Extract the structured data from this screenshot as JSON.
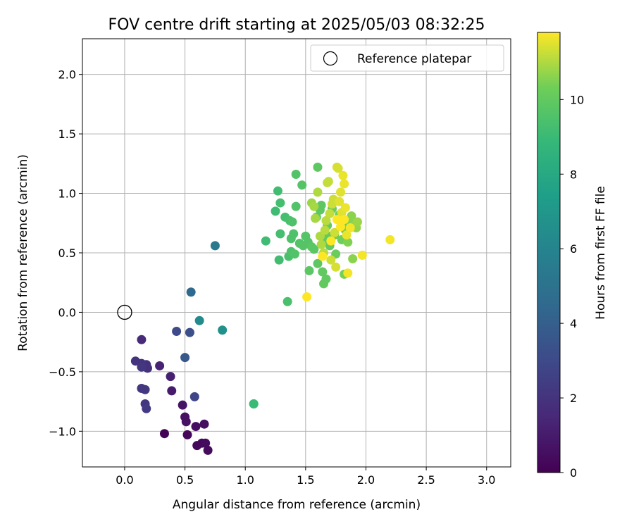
{
  "chart_data": {
    "type": "scatter",
    "title": "FOV centre drift starting at 2025/05/03 08:32:25",
    "xlabel": "Angular distance from reference (arcmin)",
    "ylabel": "Rotation from reference (arcmin)",
    "xlim": [
      -0.35,
      3.2
    ],
    "ylim": [
      -1.3,
      2.3
    ],
    "xticks": [
      0.0,
      0.5,
      1.0,
      1.5,
      2.0,
      2.5,
      3.0
    ],
    "xtick_labels": [
      "0.0",
      "0.5",
      "1.0",
      "1.5",
      "2.0",
      "2.5",
      "3.0"
    ],
    "yticks": [
      -1.0,
      -0.5,
      0.0,
      0.5,
      1.0,
      1.5,
      2.0
    ],
    "ytick_labels": [
      "−1.0",
      "−0.5",
      "0.0",
      "0.5",
      "1.0",
      "1.5",
      "2.0"
    ],
    "grid": true,
    "legend": {
      "placement": "upper-right",
      "entries": [
        "Reference platepar"
      ]
    },
    "reference_point": {
      "x": 0.0,
      "y": 0.0,
      "label": "Reference platepar"
    },
    "colorbar": {
      "label": "Hours from first FF file",
      "colormap": "viridis",
      "range": [
        0,
        11.8
      ],
      "ticks": [
        0,
        2,
        4,
        6,
        8,
        10
      ],
      "tick_labels": [
        "0",
        "2",
        "4",
        "6",
        "8",
        "10"
      ]
    },
    "points": [
      [
        0.33,
        -1.02,
        0.1
      ],
      [
        0.52,
        -1.03,
        0.2
      ],
      [
        0.6,
        -1.12,
        0.3
      ],
      [
        0.64,
        -1.1,
        0.3
      ],
      [
        0.69,
        -1.16,
        0.4
      ],
      [
        0.67,
        -1.1,
        0.4
      ],
      [
        0.59,
        -0.96,
        0.5
      ],
      [
        0.66,
        -0.94,
        0.5
      ],
      [
        0.5,
        -0.88,
        0.6
      ],
      [
        0.51,
        -0.92,
        0.6
      ],
      [
        0.48,
        -0.78,
        0.7
      ],
      [
        0.39,
        -0.66,
        1.0
      ],
      [
        0.38,
        -0.54,
        1.2
      ],
      [
        0.29,
        -0.45,
        1.3
      ],
      [
        0.14,
        -0.23,
        1.6
      ],
      [
        0.18,
        -0.44,
        1.8
      ],
      [
        0.19,
        -0.47,
        1.9
      ],
      [
        0.09,
        -0.41,
        2.0
      ],
      [
        0.14,
        -0.43,
        2.0
      ],
      [
        0.14,
        -0.46,
        2.1
      ],
      [
        0.14,
        -0.64,
        2.2
      ],
      [
        0.17,
        -0.65,
        2.2
      ],
      [
        0.17,
        -0.77,
        2.2
      ],
      [
        0.18,
        -0.81,
        2.3
      ],
      [
        0.58,
        -0.71,
        2.8
      ],
      [
        0.43,
        -0.16,
        3.0
      ],
      [
        0.54,
        -0.17,
        3.3
      ],
      [
        0.5,
        -0.38,
        3.6
      ],
      [
        0.55,
        0.17,
        4.5
      ],
      [
        0.62,
        -0.07,
        6.4
      ],
      [
        0.81,
        -0.15,
        6.7
      ],
      [
        0.75,
        0.56,
        5.4
      ],
      [
        1.07,
        -0.77,
        8.8
      ],
      [
        1.07,
        -0.77,
        9.0
      ],
      [
        1.17,
        0.6,
        9.1
      ],
      [
        1.25,
        0.85,
        9.1
      ],
      [
        1.27,
        1.02,
        9.2
      ],
      [
        1.28,
        0.44,
        9.2
      ],
      [
        1.29,
        0.92,
        9.3
      ],
      [
        1.29,
        0.66,
        9.3
      ],
      [
        1.33,
        0.8,
        9.3
      ],
      [
        1.35,
        0.09,
        9.4
      ],
      [
        1.36,
        0.47,
        9.4
      ],
      [
        1.37,
        0.77,
        9.4
      ],
      [
        1.38,
        0.62,
        9.5
      ],
      [
        1.38,
        0.51,
        9.5
      ],
      [
        1.39,
        0.76,
        9.5
      ],
      [
        1.4,
        0.66,
        9.5
      ],
      [
        1.41,
        0.49,
        9.6
      ],
      [
        1.42,
        1.16,
        9.6
      ],
      [
        1.42,
        0.89,
        9.6
      ],
      [
        1.45,
        0.58,
        9.6
      ],
      [
        1.47,
        1.07,
        9.7
      ],
      [
        1.48,
        0.56,
        9.7
      ],
      [
        1.5,
        0.64,
        9.7
      ],
      [
        1.52,
        0.59,
        9.7
      ],
      [
        1.53,
        0.35,
        9.8
      ],
      [
        1.55,
        0.55,
        9.8
      ],
      [
        1.57,
        0.53,
        9.8
      ],
      [
        1.59,
        0.8,
        9.8
      ],
      [
        1.6,
        1.22,
        9.9
      ],
      [
        1.6,
        0.41,
        9.9
      ],
      [
        1.62,
        0.86,
        9.9
      ],
      [
        1.63,
        0.9,
        9.9
      ],
      [
        1.64,
        0.34,
        10.0
      ],
      [
        1.65,
        0.24,
        10.0
      ],
      [
        1.66,
        0.61,
        10.0
      ],
      [
        1.67,
        0.28,
        10.0
      ],
      [
        1.68,
        0.73,
        10.1
      ],
      [
        1.69,
        0.64,
        10.1
      ],
      [
        1.7,
        0.56,
        10.1
      ],
      [
        1.72,
        0.87,
        10.2
      ],
      [
        1.74,
        0.65,
        10.2
      ],
      [
        1.75,
        0.49,
        10.2
      ],
      [
        1.78,
        0.82,
        10.3
      ],
      [
        1.8,
        0.61,
        10.3
      ],
      [
        1.81,
        0.75,
        10.3
      ],
      [
        1.82,
        0.32,
        10.4
      ],
      [
        1.83,
        0.69,
        10.4
      ],
      [
        1.85,
        0.59,
        10.5
      ],
      [
        1.86,
        0.78,
        10.5
      ],
      [
        1.88,
        0.81,
        10.6
      ],
      [
        1.89,
        0.45,
        10.6
      ],
      [
        1.9,
        0.73,
        10.7
      ],
      [
        1.92,
        0.71,
        10.7
      ],
      [
        1.93,
        0.76,
        10.8
      ],
      [
        1.55,
        0.92,
        10.8
      ],
      [
        1.57,
        0.89,
        10.9
      ],
      [
        1.58,
        0.79,
        10.9
      ],
      [
        1.6,
        1.01,
        11.0
      ],
      [
        1.62,
        0.64,
        11.0
      ],
      [
        1.63,
        0.57,
        11.0
      ],
      [
        1.65,
        0.5,
        11.1
      ],
      [
        1.66,
        0.69,
        11.1
      ],
      [
        1.67,
        0.77,
        11.1
      ],
      [
        1.68,
        1.09,
        11.2
      ],
      [
        1.69,
        1.1,
        11.2
      ],
      [
        1.7,
        0.83,
        11.2
      ],
      [
        1.71,
        0.44,
        11.3
      ],
      [
        1.72,
        0.91,
        11.3
      ],
      [
        1.73,
        0.95,
        11.3
      ],
      [
        1.74,
        0.67,
        11.3
      ],
      [
        1.75,
        0.38,
        11.4
      ],
      [
        1.76,
        1.22,
        11.4
      ],
      [
        1.77,
        1.21,
        11.4
      ],
      [
        1.78,
        0.93,
        11.5
      ],
      [
        1.79,
        1.01,
        11.5
      ],
      [
        1.8,
        0.84,
        11.5
      ],
      [
        1.81,
        1.15,
        11.6
      ],
      [
        1.82,
        1.08,
        11.6
      ],
      [
        1.83,
        0.88,
        11.6
      ],
      [
        1.84,
        0.65,
        11.6
      ],
      [
        1.85,
        0.33,
        11.7
      ],
      [
        1.87,
        0.71,
        11.7
      ],
      [
        1.97,
        0.48,
        11.7
      ],
      [
        2.2,
        0.61,
        11.7
      ],
      [
        1.51,
        0.13,
        11.8
      ],
      [
        1.64,
        0.47,
        11.8
      ],
      [
        1.71,
        0.6,
        11.8
      ],
      [
        1.76,
        0.78,
        11.8
      ],
      [
        1.79,
        0.72,
        11.8
      ],
      [
        1.82,
        0.78,
        11.8
      ]
    ]
  }
}
